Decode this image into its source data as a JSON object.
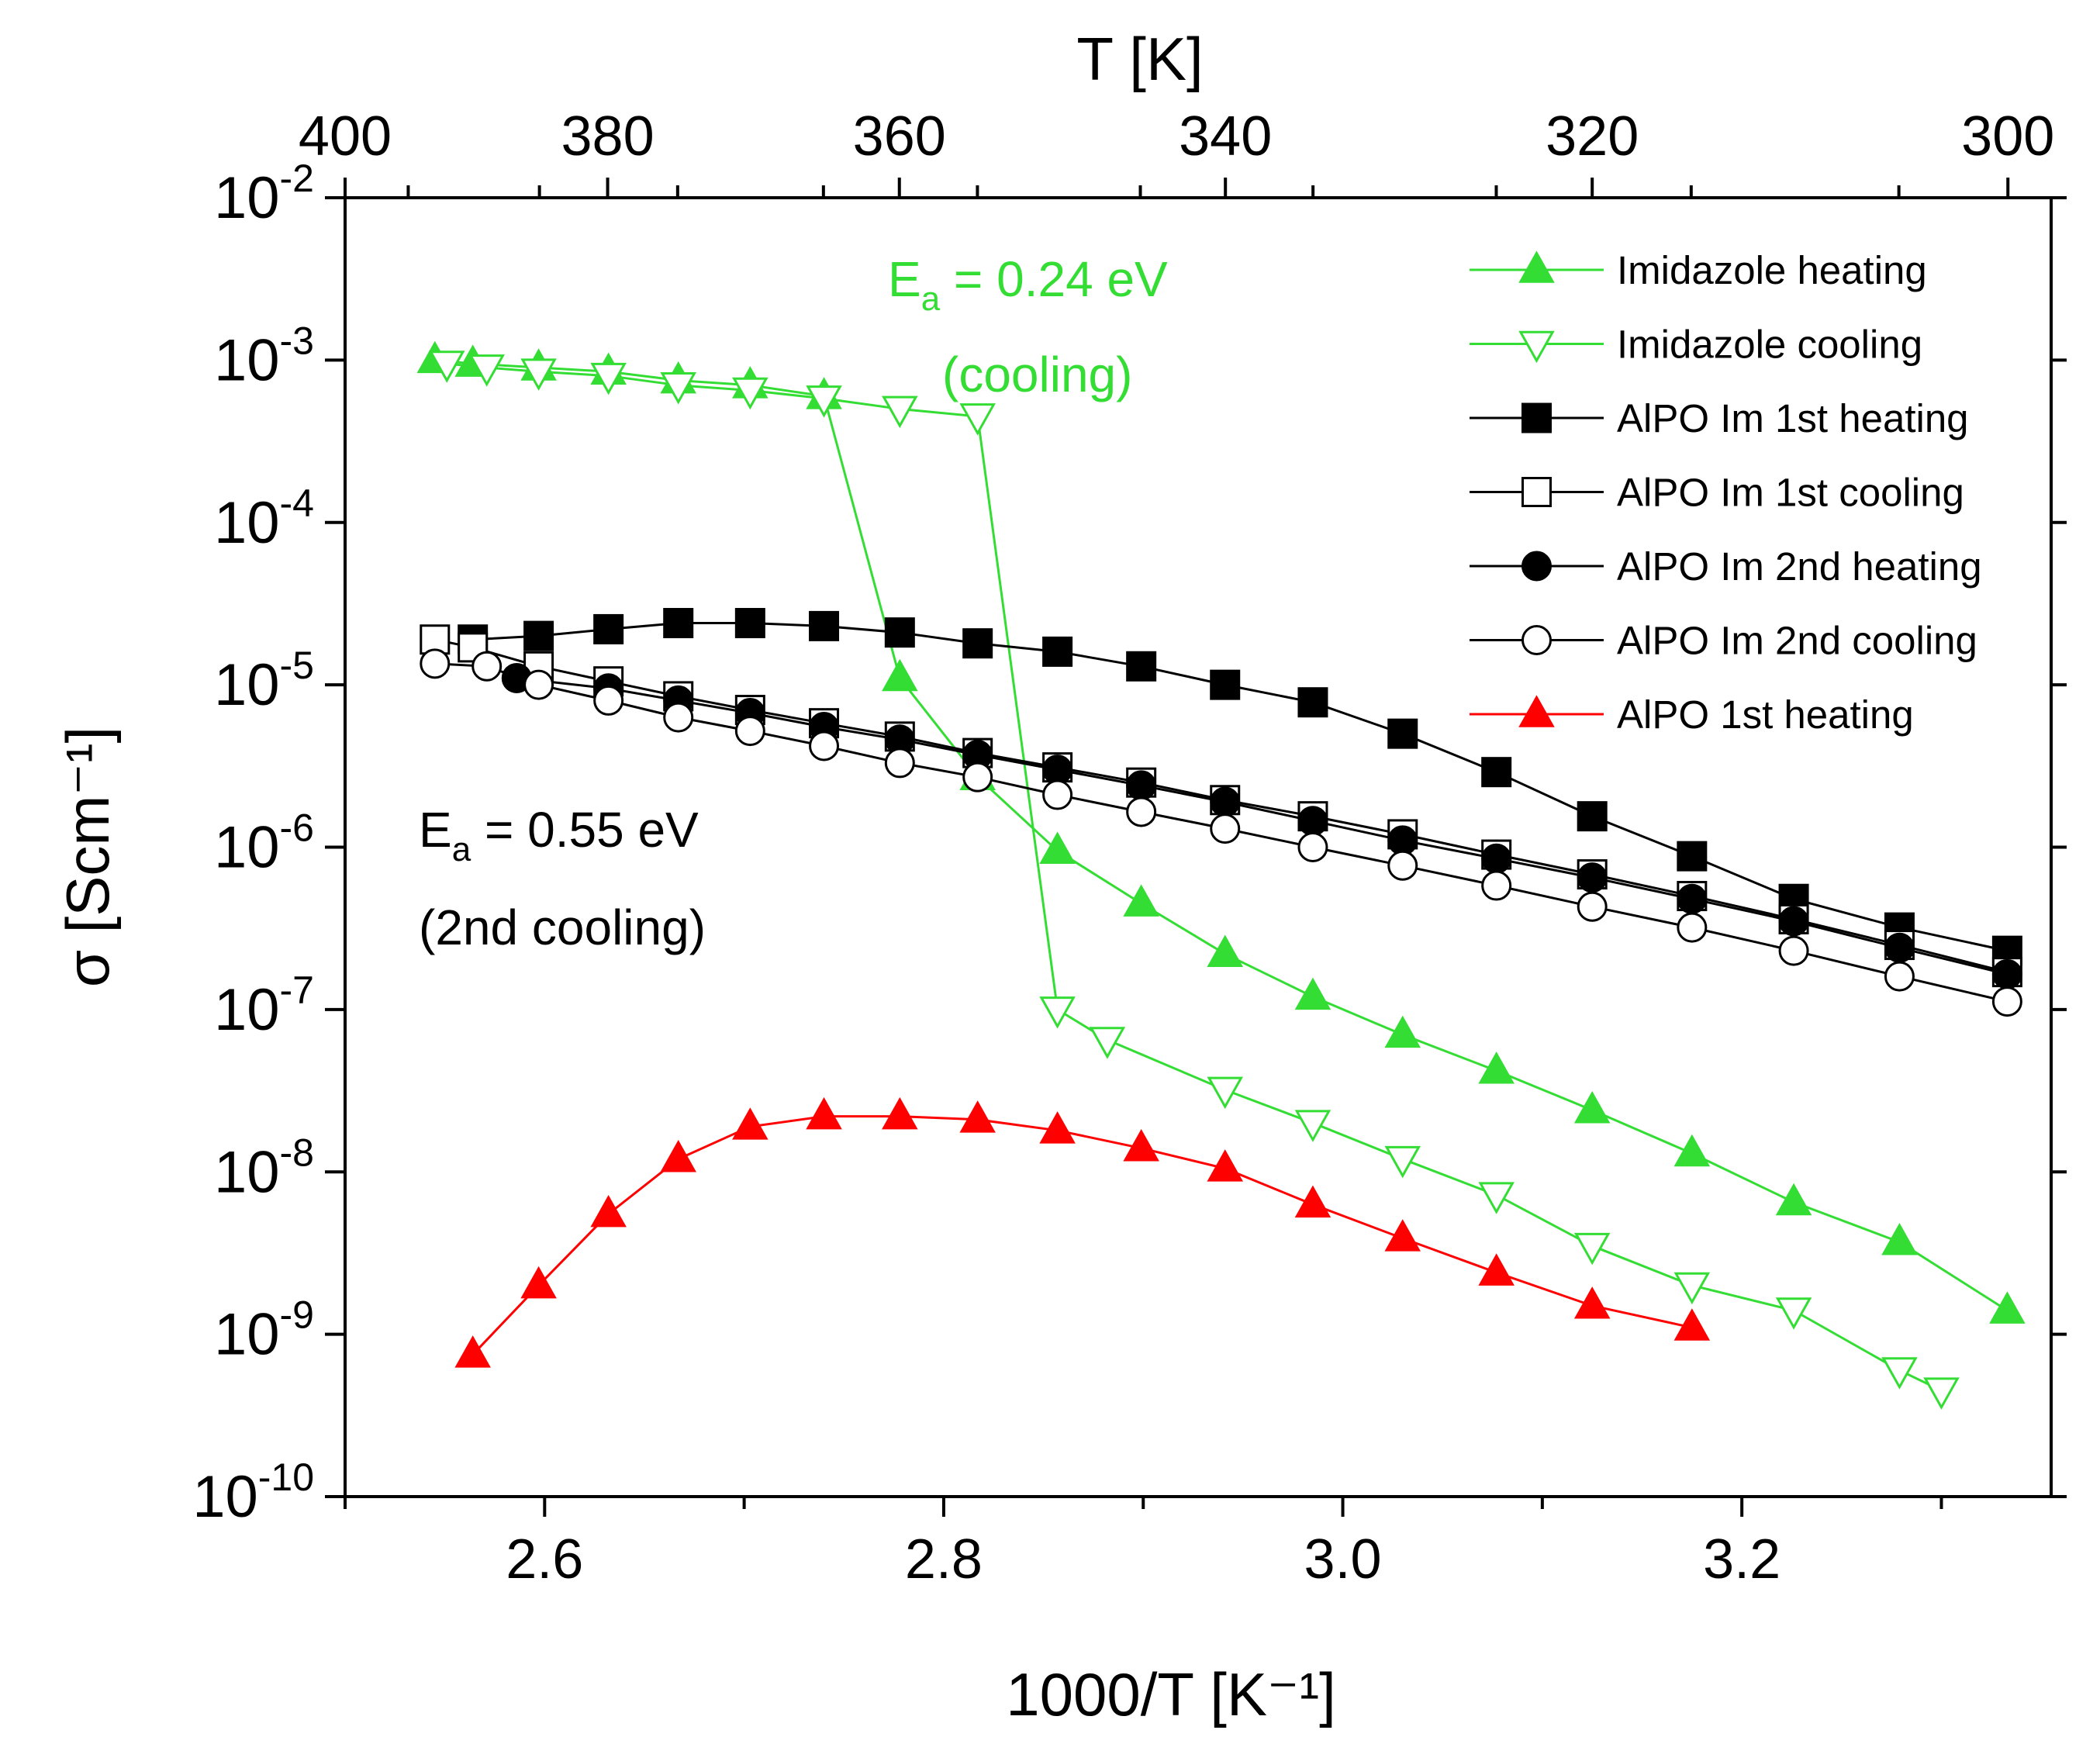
{
  "chart_data": {
    "type": "scatter",
    "title": "",
    "xlabel": "1000/T [K⁻¹]",
    "ylabel": "σ [Scm⁻¹]",
    "top_xlabel": "T [K]",
    "xlim": [
      2.5,
      3.355
    ],
    "ylim": [
      1e-10,
      0.01
    ],
    "yscale": "log",
    "x_ticks": [
      "2.6",
      "2.8",
      "3.0",
      "3.2"
    ],
    "x_tick_values": [
      2.6,
      2.8,
      3.0,
      3.2
    ],
    "top_ticks": [
      "400",
      "380",
      "360",
      "340",
      "320",
      "300"
    ],
    "top_tick_values": [
      400,
      380,
      360,
      340,
      320,
      300
    ],
    "y_tick_exponents": [
      "-10",
      "-9",
      "-8",
      "-7",
      "-6",
      "-5",
      "-4",
      "-3",
      "-2"
    ],
    "y_tick_base": "10",
    "legend_position": "top-right",
    "annotations": [
      {
        "line1_main": "E",
        "line1_sub": "a",
        "line1_rest": " = 0.24 eV",
        "line2": "(cooling)",
        "color": "#33dd33"
      },
      {
        "line1_main": "E",
        "line1_sub": "a",
        "line1_rest": " = 0.55 eV",
        "line2": "(2nd cooling)",
        "color": "#000000"
      }
    ],
    "series": [
      {
        "name": "Imidazole heating",
        "color": "#33dd33",
        "marker": "triangle-up",
        "filled": true,
        "x": [
          2.545,
          2.564,
          2.597,
          2.632,
          2.667,
          2.703,
          2.74,
          2.778,
          2.817,
          2.857,
          2.899,
          2.941,
          2.985,
          3.03,
          3.077,
          3.125,
          3.175,
          3.226,
          3.279,
          3.333
        ],
        "y": [
          0.001,
          0.00095,
          0.0009,
          0.00085,
          0.00075,
          0.0007,
          0.0006,
          1.1e-05,
          2.7e-06,
          9.5e-07,
          4.5e-07,
          2.2e-07,
          1.2e-07,
          7e-08,
          4.2e-08,
          2.4e-08,
          1.3e-08,
          6.5e-09,
          3.7e-09,
          1.4e-09
        ]
      },
      {
        "name": "Imidazole cooling",
        "color": "#33dd33",
        "marker": "triangle-down",
        "filled": false,
        "x": [
          2.551,
          2.571,
          2.597,
          2.632,
          2.667,
          2.703,
          2.74,
          2.778,
          2.817,
          2.857,
          2.882,
          2.941,
          2.985,
          3.03,
          3.077,
          3.125,
          3.175,
          3.226,
          3.279,
          3.3
        ],
        "y": [
          0.00095,
          0.0009,
          0.00085,
          0.0008,
          0.0007,
          0.00065,
          0.00058,
          0.0005,
          0.00045,
          1e-07,
          6.5e-08,
          3.2e-08,
          2e-08,
          1.2e-08,
          7.2e-09,
          3.5e-09,
          2e-09,
          1.4e-09,
          6e-10,
          4.5e-10
        ]
      },
      {
        "name": "AlPO Im 1st heating",
        "color": "#000000",
        "marker": "square",
        "filled": true,
        "x": [
          2.564,
          2.597,
          2.632,
          2.667,
          2.703,
          2.74,
          2.778,
          2.817,
          2.857,
          2.899,
          2.941,
          2.985,
          3.03,
          3.077,
          3.125,
          3.175,
          3.226,
          3.279,
          3.333
        ],
        "y": [
          1.9e-05,
          2e-05,
          2.2e-05,
          2.4e-05,
          2.4e-05,
          2.3e-05,
          2.1e-05,
          1.8e-05,
          1.6e-05,
          1.3e-05,
          1e-05,
          7.8e-06,
          5e-06,
          2.9e-06,
          1.55e-06,
          8.8e-07,
          4.8e-07,
          3.2e-07,
          2.3e-07
        ]
      },
      {
        "name": "AlPO Im 1st cooling",
        "color": "#000000",
        "marker": "square",
        "filled": false,
        "x": [
          2.545,
          2.564,
          2.597,
          2.632,
          2.667,
          2.703,
          2.74,
          2.778,
          2.817,
          2.857,
          2.899,
          2.941,
          2.985,
          3.03,
          3.077,
          3.125,
          3.175,
          3.226,
          3.279,
          3.333
        ],
        "y": [
          1.9e-05,
          1.7e-05,
          1.3e-05,
          1.05e-05,
          8.5e-06,
          7e-06,
          5.8e-06,
          4.8e-06,
          3.8e-06,
          3.1e-06,
          2.5e-06,
          1.95e-06,
          1.55e-06,
          1.2e-06,
          9e-07,
          6.8e-07,
          5e-07,
          3.6e-07,
          2.5e-07,
          1.7e-07
        ]
      },
      {
        "name": "AlPO Im 2nd heating",
        "color": "#000000",
        "marker": "circle",
        "filled": true,
        "x": [
          2.586,
          2.632,
          2.667,
          2.703,
          2.74,
          2.778,
          2.817,
          2.857,
          2.899,
          2.941,
          2.985,
          3.03,
          3.077,
          3.125,
          3.175,
          3.226,
          3.279,
          3.333
        ],
        "y": [
          1.1e-05,
          9.5e-06,
          8e-06,
          6.7e-06,
          5.5e-06,
          4.6e-06,
          3.7e-06,
          3e-06,
          2.4e-06,
          1.9e-06,
          1.45e-06,
          1.1e-06,
          8.5e-07,
          6.5e-07,
          4.8e-07,
          3.5e-07,
          2.4e-07,
          1.65e-07
        ]
      },
      {
        "name": "AlPO Im 2nd cooling",
        "color": "#000000",
        "marker": "circle",
        "filled": false,
        "x": [
          2.545,
          2.571,
          2.597,
          2.632,
          2.667,
          2.703,
          2.74,
          2.778,
          2.817,
          2.857,
          2.899,
          2.941,
          2.985,
          3.03,
          3.077,
          3.125,
          3.175,
          3.226,
          3.279,
          3.333
        ],
        "y": [
          1.35e-05,
          1.3e-05,
          1e-05,
          8e-06,
          6.3e-06,
          5.2e-06,
          4.2e-06,
          3.3e-06,
          2.7e-06,
          2.1e-06,
          1.65e-06,
          1.3e-06,
          1e-06,
          7.7e-07,
          5.8e-07,
          4.3e-07,
          3.2e-07,
          2.3e-07,
          1.6e-07,
          1.12e-07
        ]
      },
      {
        "name": "AlPO 1st heating",
        "color": "#ff0000",
        "marker": "triangle-up",
        "filled": true,
        "x": [
          2.564,
          2.597,
          2.632,
          2.667,
          2.703,
          2.74,
          2.778,
          2.817,
          2.857,
          2.899,
          2.941,
          2.985,
          3.03,
          3.077,
          3.125,
          3.175
        ],
        "y": [
          7.5e-10,
          2e-09,
          5.5e-09,
          1.2e-08,
          1.9e-08,
          2.2e-08,
          2.2e-08,
          2.1e-08,
          1.8e-08,
          1.4e-08,
          1.05e-08,
          6.3e-09,
          3.9e-09,
          2.4e-09,
          1.5e-09,
          1.1e-09
        ]
      }
    ]
  }
}
